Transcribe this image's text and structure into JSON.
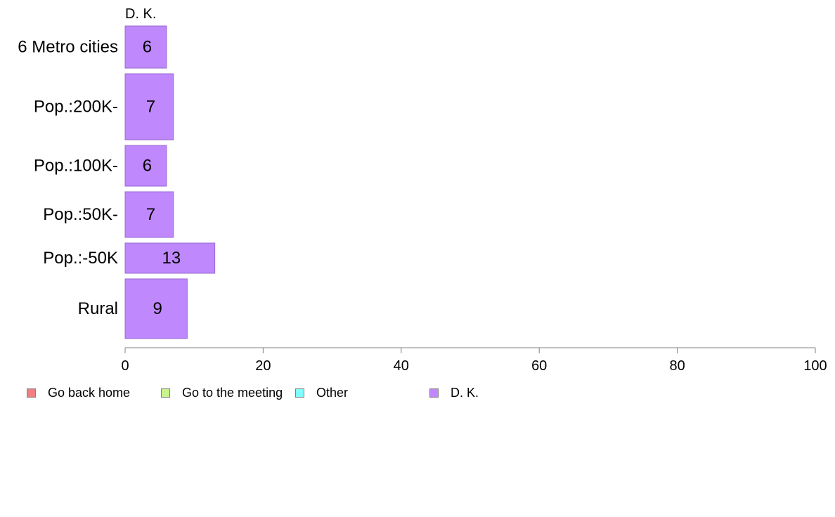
{
  "chart_data": {
    "type": "bar",
    "orientation": "horizontal",
    "stacked": true,
    "categories": [
      "6 Metro cities",
      "Pop.:200K-",
      "Pop.:100K-",
      "Pop.:50K-",
      "Pop.:-50K",
      "Rural"
    ],
    "series_header": "D. K.",
    "series": [
      {
        "name": "Go back home",
        "color": "#f08080",
        "values": [
          null,
          null,
          null,
          null,
          null,
          null
        ]
      },
      {
        "name": "Go to the meeting",
        "color": "#c6f58a",
        "values": [
          null,
          null,
          null,
          null,
          null,
          null
        ]
      },
      {
        "name": "Other",
        "color": "#80ffff",
        "values": [
          null,
          null,
          null,
          null,
          null,
          null
        ]
      },
      {
        "name": "D. K.",
        "color": "#bf88fc",
        "values": [
          6,
          7,
          6,
          7,
          13,
          9
        ]
      }
    ],
    "xlim": [
      0,
      100
    ],
    "x_ticks": [
      "0",
      "20",
      "40",
      "60",
      "80",
      "100"
    ],
    "legend_position": "bottom-left",
    "grid": false
  }
}
